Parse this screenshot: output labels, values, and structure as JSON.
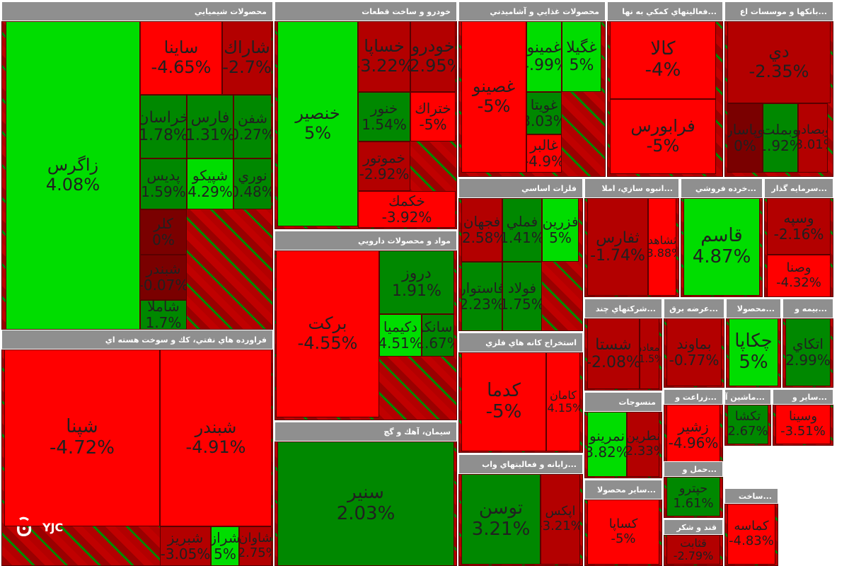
{
  "chart_data": {
    "type": "treemap",
    "title": "",
    "color_scale": {
      "negative": "#ff0000",
      "dark_negative": "#b30000",
      "neutral": "#7a0000",
      "positive": "#00dd00",
      "dark_positive": "#008800"
    },
    "sectors": [
      {
        "name": "محصولات شيميايي",
        "tiles": [
          {
            "symbol": "زاگرس",
            "change": "4.08%"
          },
          {
            "symbol": "ساينا",
            "change": "-4.65%"
          },
          {
            "symbol": "شاراك",
            "change": "-2.7%"
          },
          {
            "symbol": "خراسان",
            "change": "1.78%"
          },
          {
            "symbol": "فارس",
            "change": "1.31%"
          },
          {
            "symbol": "شفن",
            "change": "0.27%"
          },
          {
            "symbol": "پديس",
            "change": "1.59%"
          },
          {
            "symbol": "شپيكو",
            "change": "4.29%"
          },
          {
            "symbol": "نوري",
            "change": "0.48%"
          },
          {
            "symbol": "كلر",
            "change": "0%"
          },
          {
            "symbol": "شبندر",
            "change": "-0.07%"
          },
          {
            "symbol": "شاملا",
            "change": "1.7%"
          }
        ]
      },
      {
        "name": "خودرو و ساخت قطعات",
        "tiles": [
          {
            "symbol": "خنصير",
            "change": "5%"
          },
          {
            "symbol": "خساپا",
            "change": "-3.22%"
          },
          {
            "symbol": "خودرو",
            "change": "-2.95%"
          },
          {
            "symbol": "خنور",
            "change": "1.54%"
          },
          {
            "symbol": "ختراك",
            "change": "-5%"
          },
          {
            "symbol": "خموتور",
            "change": "-2.92%"
          },
          {
            "symbol": "خكمك",
            "change": "-3.92%"
          }
        ]
      },
      {
        "name": "محصولات غذايي و آشاميدني",
        "tiles": [
          {
            "symbol": "غصينو",
            "change": "-5%"
          },
          {
            "symbol": "غمينو",
            "change": "4.99%"
          },
          {
            "symbol": "غگيلا",
            "change": "5%"
          },
          {
            "symbol": "غويتا",
            "change": "3.03%"
          },
          {
            "symbol": "غالبر",
            "change": "-4.9%"
          }
        ]
      },
      {
        "name": "فعاليتهاي كمكي به نها...",
        "tiles": [
          {
            "symbol": "كالا",
            "change": "-4%"
          },
          {
            "symbol": "فرابورس",
            "change": "-5%"
          }
        ]
      },
      {
        "name": "بانكها و موسسات اع...",
        "tiles": [
          {
            "symbol": "دي",
            "change": "-2.35%"
          },
          {
            "symbol": "وپاسار",
            "change": "0%"
          },
          {
            "symbol": "وبملت",
            "change": "1.92%"
          },
          {
            "symbol": "وبصادر",
            "change": "-3.01%"
          }
        ]
      },
      {
        "name": "فراورده هاي نفتي، كك و سوخت هسته اي",
        "tiles": [
          {
            "symbol": "شپنا",
            "change": "-4.72%"
          },
          {
            "symbol": "شبندر",
            "change": "-4.91%"
          },
          {
            "symbol": "شبريز",
            "change": "-3.05%"
          },
          {
            "symbol": "شراز",
            "change": "5%"
          },
          {
            "symbol": "شاوان",
            "change": "-2.75%"
          }
        ]
      },
      {
        "name": "مواد و محصولات دارويي",
        "tiles": [
          {
            "symbol": "بركت",
            "change": "-4.55%"
          },
          {
            "symbol": "دروز",
            "change": "1.91%"
          },
          {
            "symbol": "دكيميا",
            "change": "4.51%"
          },
          {
            "symbol": "دسانكو",
            "change": "1.67%"
          }
        ]
      },
      {
        "name": "فلزات اساسي",
        "tiles": [
          {
            "symbol": "فجهان",
            "change": "-2.58%"
          },
          {
            "symbol": "فملي",
            "change": "1.41%"
          },
          {
            "symbol": "فزرين",
            "change": "5%"
          },
          {
            "symbol": "فولاد",
            "change": "1.75%"
          },
          {
            "symbol": "فاستوار",
            "change": "2.23%"
          }
        ]
      },
      {
        "name": "انبوه سازي، املا...",
        "tiles": [
          {
            "symbol": "ثفارس",
            "change": "-1.74%"
          },
          {
            "symbol": "ثشاهد",
            "change": "-3.88%"
          }
        ]
      },
      {
        "name": "خرده فروشي...",
        "tiles": [
          {
            "symbol": "قاسم",
            "change": "4.87%"
          }
        ]
      },
      {
        "name": "سرمايه گذار...",
        "tiles": [
          {
            "symbol": "وسپه",
            "change": "-2.16%"
          },
          {
            "symbol": "وصنا",
            "change": "-4.32%"
          }
        ]
      },
      {
        "name": "سيمان، آهك و گچ",
        "tiles": [
          {
            "symbol": "سنير",
            "change": "2.03%"
          }
        ]
      },
      {
        "name": "استخراج كانه هاي فلزي",
        "tiles": [
          {
            "symbol": "كدما",
            "change": "-5%"
          },
          {
            "symbol": "كامان",
            "change": "-4.15%"
          }
        ]
      },
      {
        "name": "شركتهاي چند...",
        "tiles": [
          {
            "symbol": "شستا",
            "change": "-2.08%"
          },
          {
            "symbol": "ومعادن",
            "change": "-1.5%"
          }
        ]
      },
      {
        "name": "عرضه برق...",
        "tiles": [
          {
            "symbol": "بماوند",
            "change": "-0.77%"
          }
        ]
      },
      {
        "name": "محصولا...",
        "tiles": [
          {
            "symbol": "چكاپا",
            "change": "5%"
          }
        ]
      },
      {
        "name": "بيمه و...",
        "tiles": [
          {
            "symbol": "اتكاي",
            "change": "2.99%"
          }
        ]
      },
      {
        "name": "رايانه و فعاليتهاي واب...",
        "tiles": [
          {
            "symbol": "توسن",
            "change": "3.21%"
          },
          {
            "symbol": "اپكس",
            "change": "-3.21%"
          }
        ]
      },
      {
        "name": "منسوجات",
        "tiles": [
          {
            "symbol": "نمرينو",
            "change": "3.82%"
          },
          {
            "symbol": "نطرين",
            "change": "-2.33%"
          }
        ]
      },
      {
        "name": "زراعت و...",
        "tiles": [
          {
            "symbol": "زشير",
            "change": "-4.96%"
          }
        ]
      },
      {
        "name": "ماشين آ...",
        "tiles": [
          {
            "symbol": "تكشا",
            "change": "2.67%"
          }
        ]
      },
      {
        "name": "ساير و...",
        "tiles": [
          {
            "symbol": "وسينا",
            "change": "-3.51%"
          }
        ]
      },
      {
        "name": "ساير محصولا...",
        "tiles": [
          {
            "symbol": "كساپا",
            "change": "-5%"
          }
        ]
      },
      {
        "name": "حمل و...",
        "tiles": [
          {
            "symbol": "حپترو",
            "change": "1.61%"
          }
        ]
      },
      {
        "name": "قند و شكر",
        "tiles": [
          {
            "symbol": "قثابت",
            "change": "-2.79%"
          }
        ]
      },
      {
        "name": "ساخت...",
        "tiles": [
          {
            "symbol": "كماسه",
            "change": "-4.83%"
          }
        ]
      }
    ]
  },
  "logo": {
    "text": "YJC"
  }
}
